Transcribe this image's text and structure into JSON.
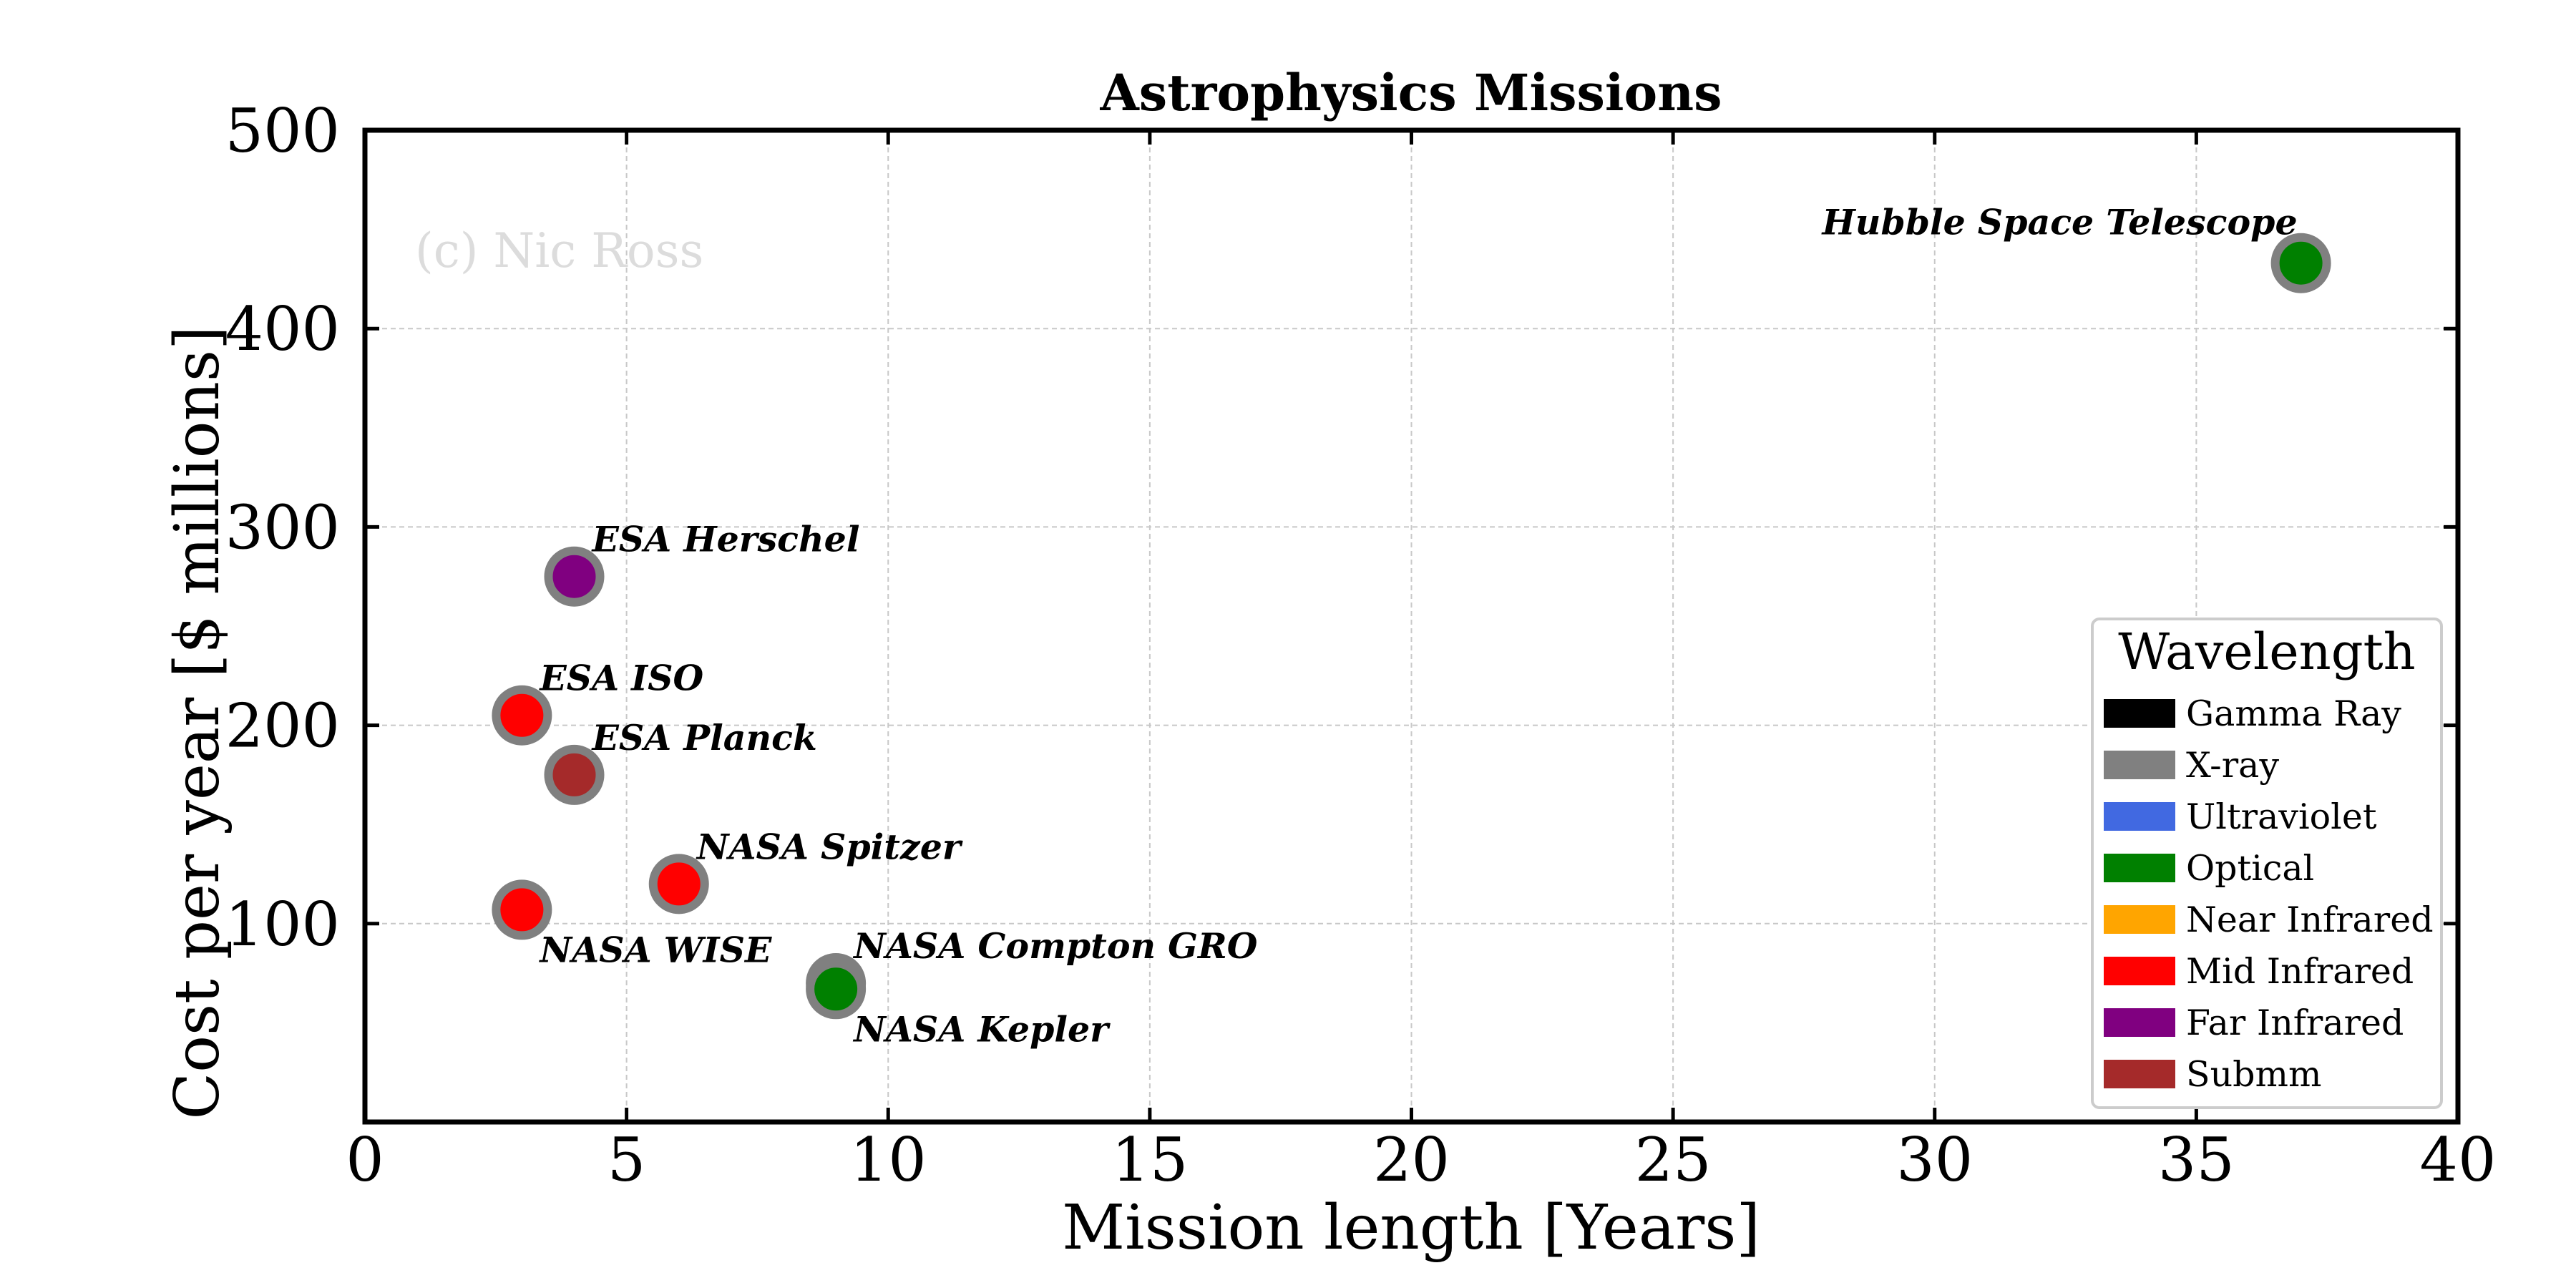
{
  "chart_data": {
    "type": "scatter",
    "title": "Astrophysics Missions",
    "xlabel": "Mission length [Years]",
    "ylabel": "Cost per year  [$ millions]",
    "xlim": [
      0,
      40
    ],
    "ylim": [
      0,
      500
    ],
    "x_ticks": [
      0,
      5,
      10,
      15,
      20,
      25,
      30,
      35,
      40
    ],
    "y_ticks": [
      100,
      200,
      300,
      400,
      500
    ],
    "grid": true,
    "watermark": "(c) Nic Ross",
    "legend": {
      "title": "Wavelength",
      "placement": "lower-right",
      "entries": [
        {
          "label": "Gamma Ray",
          "color": "#000000"
        },
        {
          "label": "X-ray",
          "color": "#808080"
        },
        {
          "label": "Ultraviolet",
          "color": "#4169e1"
        },
        {
          "label": "Optical",
          "color": "#008000"
        },
        {
          "label": "Near Infrared",
          "color": "#ffa500"
        },
        {
          "label": "Mid Infrared",
          "color": "#ff0000"
        },
        {
          "label": "Far Infrared",
          "color": "#800080"
        },
        {
          "label": "Submm",
          "color": "#a52a2a"
        }
      ]
    },
    "points": [
      {
        "label": "Hubble Space Telescope",
        "x": 37,
        "y": 433,
        "wavelength": "Optical",
        "color": "#008000",
        "label_side": "upper-left"
      },
      {
        "label": "ESA Herschel",
        "x": 4,
        "y": 275,
        "wavelength": "Far Infrared",
        "color": "#800080",
        "label_side": "upper-right"
      },
      {
        "label": "ESA ISO",
        "x": 3,
        "y": 205,
        "wavelength": "Mid Infrared",
        "color": "#ff0000",
        "label_side": "upper-right"
      },
      {
        "label": "ESA Planck",
        "x": 4,
        "y": 175,
        "wavelength": "Submm",
        "color": "#a52a2a",
        "label_side": "upper-right"
      },
      {
        "label": "NASA Spitzer",
        "x": 6,
        "y": 120,
        "wavelength": "Mid Infrared",
        "color": "#ff0000",
        "label_side": "upper-right"
      },
      {
        "label": "NASA WISE",
        "x": 3,
        "y": 107,
        "wavelength": "Mid Infrared",
        "color": "#ff0000",
        "label_side": "lower-right"
      },
      {
        "label": "NASA Compton GRO",
        "x": 9,
        "y": 70,
        "wavelength": "Gamma Ray",
        "color": "#000000",
        "label_side": "upper-right"
      },
      {
        "label": "NASA Kepler",
        "x": 9,
        "y": 67,
        "wavelength": "Optical",
        "color": "#008000",
        "label_side": "lower-right"
      }
    ]
  }
}
